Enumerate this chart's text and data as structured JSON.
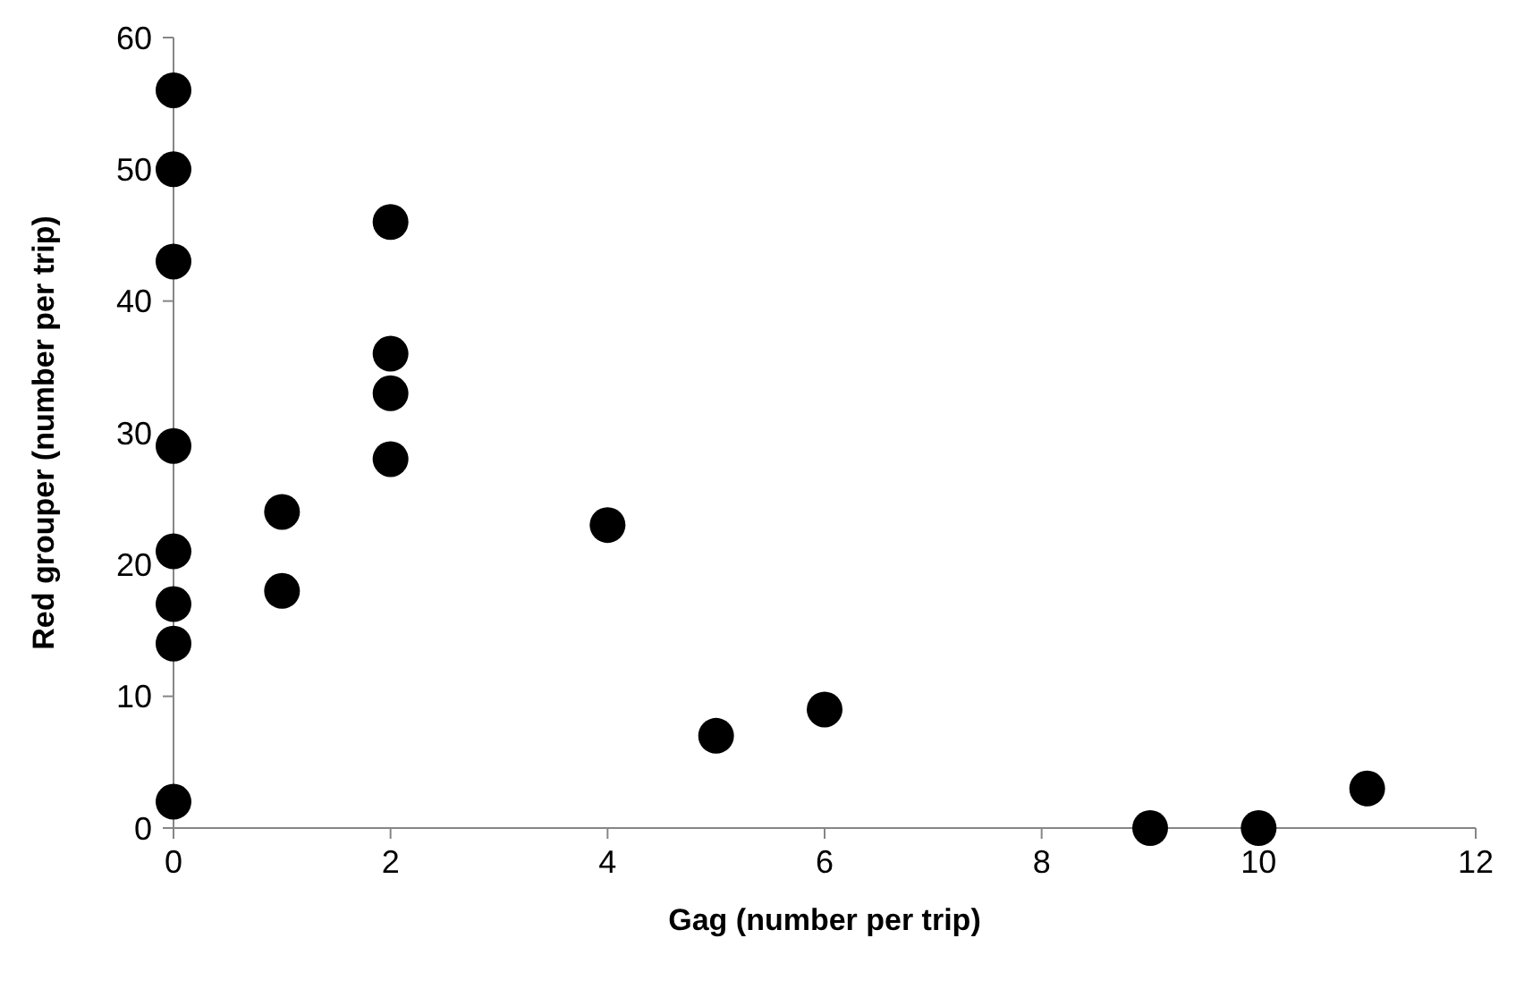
{
  "chart_data": {
    "type": "scatter",
    "xlabel": "Gag (number per trip)",
    "ylabel": "Red grouper (number per trip)",
    "x": [
      0,
      0,
      0,
      0,
      0,
      0,
      0,
      0,
      1,
      1,
      2,
      2,
      2,
      2,
      4,
      5,
      6,
      9,
      10,
      11
    ],
    "values": [
      56,
      50,
      43,
      29,
      21,
      17,
      14,
      2,
      24,
      18,
      46,
      36,
      33,
      28,
      23,
      7,
      9,
      0,
      0,
      3
    ],
    "color": "#000000",
    "marker": "circle",
    "grid": false,
    "xlim": [
      0,
      12
    ],
    "xticks": [
      0,
      2,
      4,
      6,
      8,
      10,
      12
    ],
    "ylim": [
      0,
      60
    ],
    "yticks": [
      0,
      10,
      20,
      30,
      40,
      50,
      60
    ]
  }
}
